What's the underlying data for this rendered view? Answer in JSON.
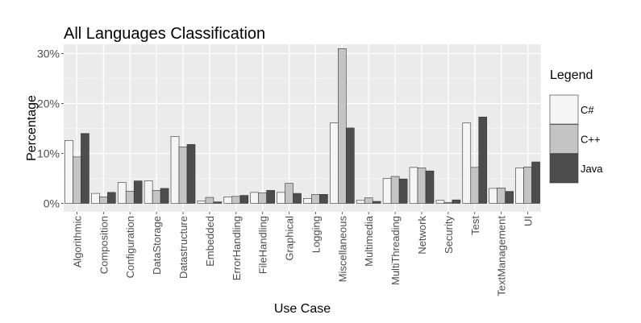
{
  "chart_data": {
    "type": "bar",
    "title": "All Languages Classification",
    "xlabel": "Use Case",
    "ylabel": "Percentage",
    "ylim": [
      0,
      32
    ],
    "yticks": [
      0,
      10,
      20,
      30
    ],
    "ytick_labels": [
      "0%",
      "10%",
      "20%",
      "30%"
    ],
    "grid": true,
    "legend": {
      "title": "Legend",
      "position": "right"
    },
    "categories": [
      "Algorithmic",
      "Composition",
      "Configuration",
      "DataStorage",
      "Datastructure",
      "Embedded",
      "ErrorHandling",
      "FileHandling",
      "Graphical",
      "Logging",
      "Miscellaneous",
      "Multimedia",
      "MultiThreading",
      "Network",
      "Security",
      "Test",
      "TextManagement",
      "UI"
    ],
    "series": [
      {
        "name": "C#",
        "color": "#f5f5f5",
        "values": [
          12.6,
          2.0,
          4.2,
          4.5,
          13.4,
          0.5,
          1.3,
          2.2,
          2.2,
          1.0,
          16.1,
          0.6,
          5.0,
          7.2,
          0.6,
          16.1,
          3.0,
          7.1
        ]
      },
      {
        "name": "C++",
        "color": "#c4c4c4",
        "values": [
          9.3,
          1.3,
          2.4,
          2.6,
          11.3,
          1.2,
          1.4,
          2.1,
          4.0,
          1.8,
          31.0,
          1.1,
          5.4,
          7.1,
          0.2,
          7.2,
          3.1,
          7.3
        ]
      },
      {
        "name": "Java",
        "color": "#4d4d4d",
        "values": [
          14.0,
          2.2,
          4.5,
          3.0,
          11.8,
          0.3,
          1.6,
          2.6,
          2.0,
          1.8,
          15.1,
          0.4,
          4.9,
          6.5,
          0.7,
          17.3,
          2.4,
          8.3
        ]
      }
    ]
  }
}
